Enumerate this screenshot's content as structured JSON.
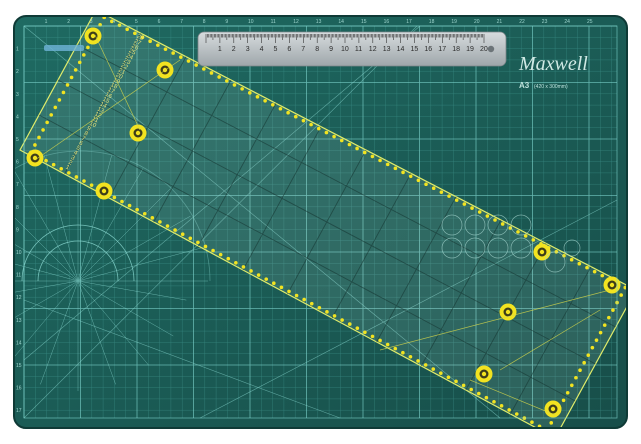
{
  "mat": {
    "brand": "Maxwell",
    "size_label": "A3",
    "size_sub": "(420 x 300mm)",
    "colors": {
      "mat": "#1e5e58",
      "mat_dark": "#164b47",
      "grid": "#63c7c0",
      "ruler": "#b9c1c4",
      "accent": "#f2e320"
    }
  },
  "steel_ruler": {
    "numbers": [
      "1",
      "2",
      "3",
      "4",
      "5",
      "6",
      "7",
      "8",
      "9",
      "10",
      "11",
      "12",
      "13",
      "14",
      "15",
      "16",
      "17",
      "18",
      "19",
      "20"
    ]
  },
  "patchwork_ruler": {
    "numbers": [
      "1",
      "2",
      "3",
      "4",
      "5",
      "6",
      "7",
      "8",
      "9",
      "10",
      "11",
      "12",
      "13",
      "14",
      "15",
      "16",
      "17",
      "18",
      "19",
      "20",
      "21",
      "22",
      "23",
      "24",
      "25",
      "26",
      "27",
      "28"
    ]
  }
}
